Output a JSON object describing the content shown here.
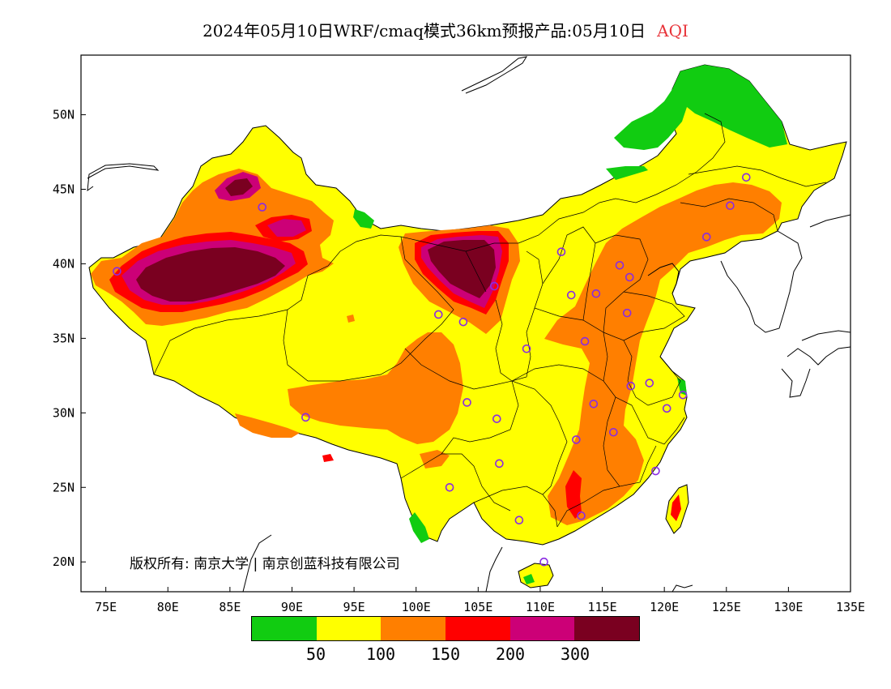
{
  "header": {
    "title": "2024年05月10日WRF/cmaq模式36km预报产品:05月10日",
    "pollutant": "AQI"
  },
  "axes": {
    "lat_labels": [
      "50N",
      "45N",
      "40N",
      "35N",
      "30N",
      "25N",
      "20N"
    ],
    "lon_labels": [
      "75E",
      "80E",
      "85E",
      "90E",
      "95E",
      "100E",
      "105E",
      "110E",
      "115E",
      "120E",
      "125E",
      "130E",
      "135E"
    ]
  },
  "legend": {
    "colors": [
      "#11cc11",
      "#ffff00",
      "#ff7f00",
      "#ff0000",
      "#cc0077",
      "#7a0020"
    ],
    "labels": [
      "50",
      "100",
      "150",
      "200",
      "300"
    ]
  },
  "copyright": "版权所有: 南京大学 | 南京创蓝科技有限公司",
  "stations": [
    [
      87.6,
      43.8
    ],
    [
      123.4,
      41.8
    ],
    [
      125.3,
      43.9
    ],
    [
      126.6,
      45.8
    ],
    [
      111.7,
      40.8
    ],
    [
      112.5,
      37.9
    ],
    [
      114.5,
      38.0
    ],
    [
      116.4,
      39.9
    ],
    [
      117.2,
      39.1
    ],
    [
      117.0,
      36.7
    ],
    [
      113.6,
      34.8
    ],
    [
      108.9,
      34.3
    ],
    [
      103.8,
      36.1
    ],
    [
      101.8,
      36.6
    ],
    [
      106.3,
      38.5
    ],
    [
      118.8,
      32.0
    ],
    [
      117.3,
      31.8
    ],
    [
      120.2,
      30.3
    ],
    [
      121.5,
      31.2
    ],
    [
      114.3,
      30.6
    ],
    [
      112.9,
      28.2
    ],
    [
      115.9,
      28.7
    ],
    [
      119.3,
      26.1
    ],
    [
      113.3,
      23.1
    ],
    [
      108.3,
      22.8
    ],
    [
      110.3,
      20.0
    ],
    [
      106.7,
      26.6
    ],
    [
      102.7,
      25.0
    ],
    [
      104.1,
      30.7
    ],
    [
      106.5,
      29.6
    ],
    [
      91.1,
      29.7
    ],
    [
      75.9,
      39.5
    ]
  ]
}
